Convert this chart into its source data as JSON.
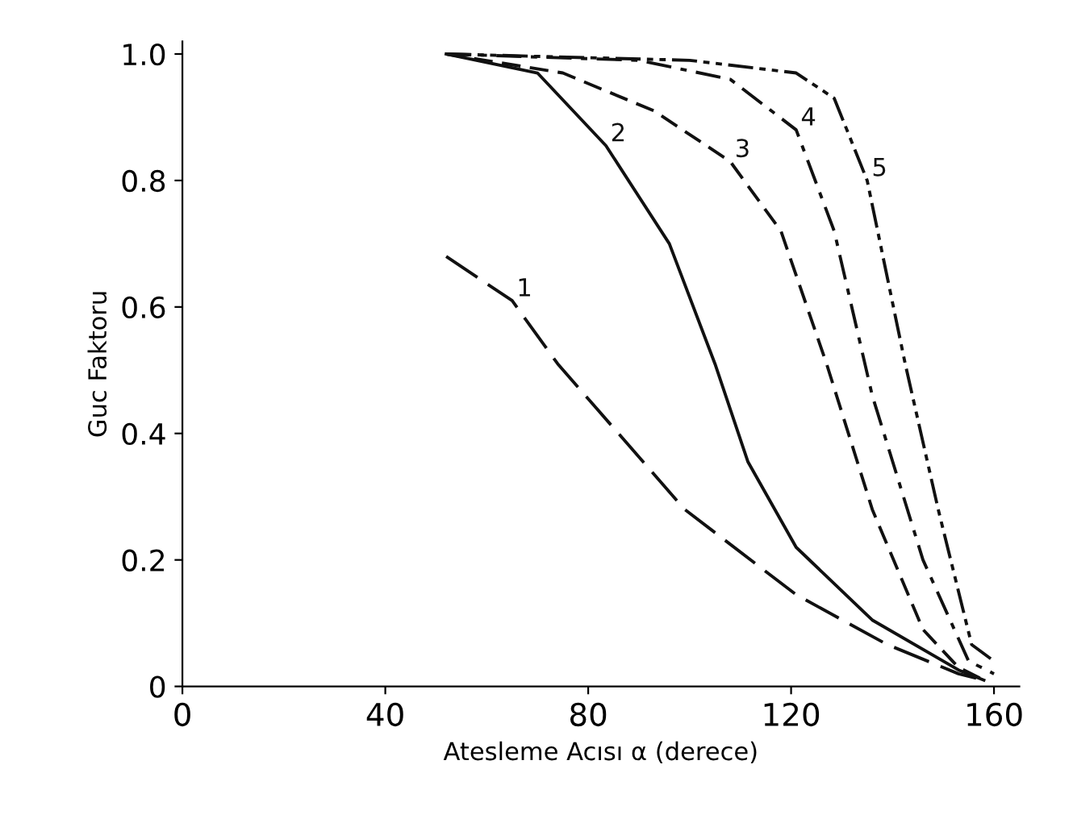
{
  "chart_data": {
    "type": "line",
    "xlabel": "Atesleme Acısı α (derece)",
    "ylabel": "Guc Faktoru",
    "xlim": [
      0,
      165
    ],
    "ylim": [
      0,
      1.02
    ],
    "xticks": [
      0,
      40,
      80,
      120,
      160
    ],
    "yticks": [
      {
        "value": 0,
        "label": "0"
      },
      {
        "value": 0.2,
        "label": "0.2"
      },
      {
        "value": 0.4,
        "label": "0.4"
      },
      {
        "value": 0.6,
        "label": "0.6"
      },
      {
        "value": 0.8,
        "label": "0.8"
      },
      {
        "value": 1.0,
        "label": "1.0"
      }
    ],
    "grid": false,
    "legend": false,
    "marker": "none",
    "series": [
      {
        "name": "1",
        "color": "#111111",
        "line_style": "longdash",
        "x": [
          52,
          65,
          74,
          99,
          121,
          139,
          153,
          158
        ],
        "values": [
          0.68,
          0.61,
          0.51,
          0.28,
          0.145,
          0.066,
          0.02,
          0.01
        ]
      },
      {
        "name": "2",
        "color": "#111111",
        "line_style": "solid",
        "x": [
          52,
          70,
          83.5,
          96,
          105,
          111.5,
          121,
          136,
          153,
          158
        ],
        "values": [
          1.0,
          0.97,
          0.855,
          0.7,
          0.51,
          0.355,
          0.22,
          0.105,
          0.026,
          0.01
        ]
      },
      {
        "name": "3",
        "color": "#111111",
        "line_style": "dashed",
        "x": [
          52,
          75,
          93,
          108,
          118,
          127,
          136,
          146,
          153,
          158
        ],
        "values": [
          1.0,
          0.97,
          0.91,
          0.83,
          0.72,
          0.51,
          0.28,
          0.09,
          0.03,
          0.01
        ]
      },
      {
        "name": "4",
        "color": "#111111",
        "line_style": "dashdot",
        "x": [
          52,
          90,
          108,
          121,
          128.5,
          136,
          146,
          155,
          160
        ],
        "values": [
          1.0,
          0.99,
          0.96,
          0.88,
          0.72,
          0.46,
          0.2,
          0.04,
          0.02
        ]
      },
      {
        "name": "5",
        "color": "#111111",
        "line_style": "dashdotdot",
        "x": [
          52,
          100,
          121,
          128.5,
          135,
          142.5,
          149,
          155.6,
          160
        ],
        "values": [
          1.0,
          0.99,
          0.97,
          0.93,
          0.8,
          0.51,
          0.28,
          0.066,
          0.04
        ]
      }
    ]
  }
}
